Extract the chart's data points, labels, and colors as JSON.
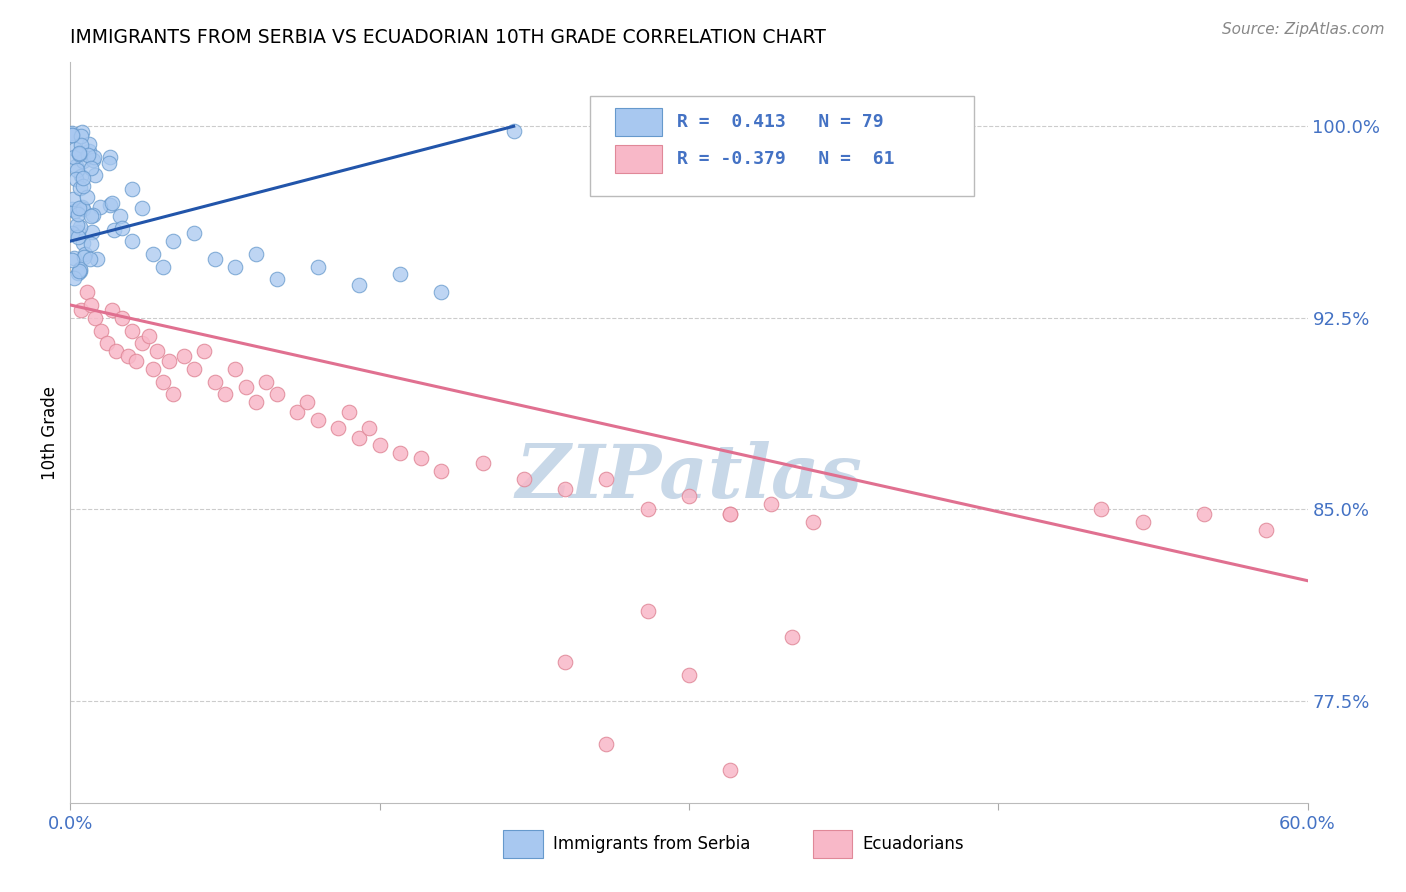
{
  "title": "IMMIGRANTS FROM SERBIA VS ECUADORIAN 10TH GRADE CORRELATION CHART",
  "source": "Source: ZipAtlas.com",
  "ylabel": "10th Grade",
  "yticks": [
    0.775,
    0.85,
    0.925,
    1.0
  ],
  "ytick_labels": [
    "77.5%",
    "85.0%",
    "92.5%",
    "100.0%"
  ],
  "xmin": 0.0,
  "xmax": 0.6,
  "ymin": 0.735,
  "ymax": 1.025,
  "legend_r1": "R =  0.413",
  "legend_n1": "N = 79",
  "legend_r2": "R = -0.379",
  "legend_n2": "N =  61",
  "serbia_color": "#A8C8F0",
  "serbia_edge": "#6699CC",
  "ecuador_color": "#F8B8C8",
  "ecuador_edge": "#E08898",
  "serbia_trendline_color": "#2255AA",
  "ecuador_trendline_color": "#E07090",
  "watermark_color": "#C8D8E8",
  "background_color": "#FFFFFF",
  "grid_color": "#CCCCCC",
  "blue_text_color": "#4472C4",
  "serbia_trend_x": [
    0.0,
    0.215
  ],
  "serbia_trend_y": [
    0.955,
    1.0
  ],
  "ecuador_trend_x": [
    0.0,
    0.6
  ],
  "ecuador_trend_y": [
    0.93,
    0.822
  ]
}
